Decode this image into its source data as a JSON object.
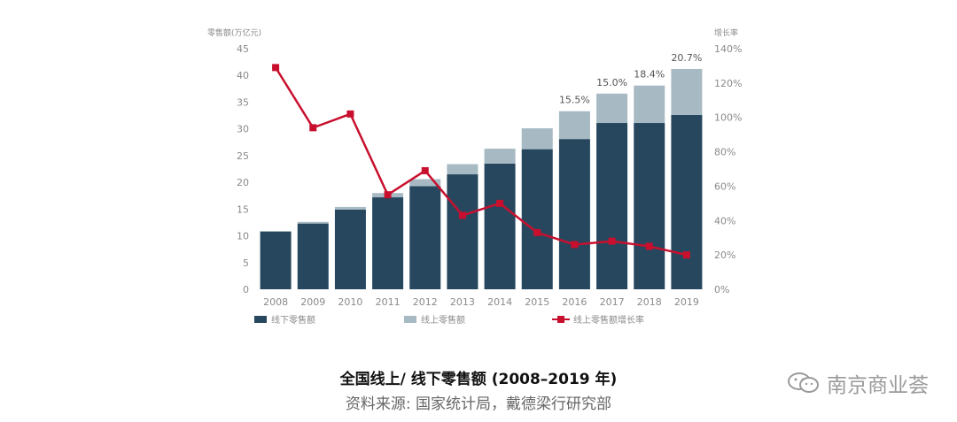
{
  "chart_data": {
    "type": "bar",
    "categories": [
      "2008",
      "2009",
      "2010",
      "2011",
      "2012",
      "2013",
      "2014",
      "2015",
      "2016",
      "2017",
      "2018",
      "2019"
    ],
    "series": [
      {
        "name": "线下零售额",
        "kind": "stacked-bar",
        "values": [
          10.8,
          12.3,
          14.9,
          17.2,
          19.3,
          21.5,
          23.5,
          26.2,
          28.1,
          31.1,
          31.1,
          32.6
        ],
        "color": "#27475e"
      },
      {
        "name": "线上零售额",
        "kind": "stacked-bar",
        "values": [
          0.1,
          0.3,
          0.5,
          0.8,
          1.3,
          1.9,
          2.8,
          3.9,
          5.2,
          5.5,
          7.0,
          8.6
        ],
        "color": "#a7bac4"
      },
      {
        "name": "线上零售额增长率",
        "kind": "line",
        "axis": "right",
        "values": [
          129,
          94,
          102,
          55,
          69,
          43,
          50,
          33,
          26,
          28,
          25,
          20
        ],
        "color": "#c8102e"
      }
    ],
    "bar_annotations": [
      {
        "category": "2016",
        "text": "15.5%"
      },
      {
        "category": "2017",
        "text": "15.0%"
      },
      {
        "category": "2018",
        "text": "18.4%"
      },
      {
        "category": "2019",
        "text": "20.7%"
      }
    ],
    "ylabel": "零售额(万亿元)",
    "y2label": "增长率",
    "ylim": [
      0,
      45
    ],
    "yticks": [
      "0",
      "5",
      "10",
      "15",
      "20",
      "25",
      "30",
      "35",
      "40",
      "45"
    ],
    "y2lim": [
      0,
      140
    ],
    "y2ticks": [
      "0%",
      "20%",
      "40%",
      "60%",
      "80%",
      "100%",
      "120%",
      "140%"
    ],
    "legend_position": "bottom",
    "grid": false
  },
  "caption": {
    "title": "全国线上/ 线下零售额 (2008–2019 年)",
    "source": "资料来源: 国家统计局，戴德梁行研究部"
  },
  "watermark": {
    "text": "南京商业荟",
    "icon": "wechat-icon"
  }
}
